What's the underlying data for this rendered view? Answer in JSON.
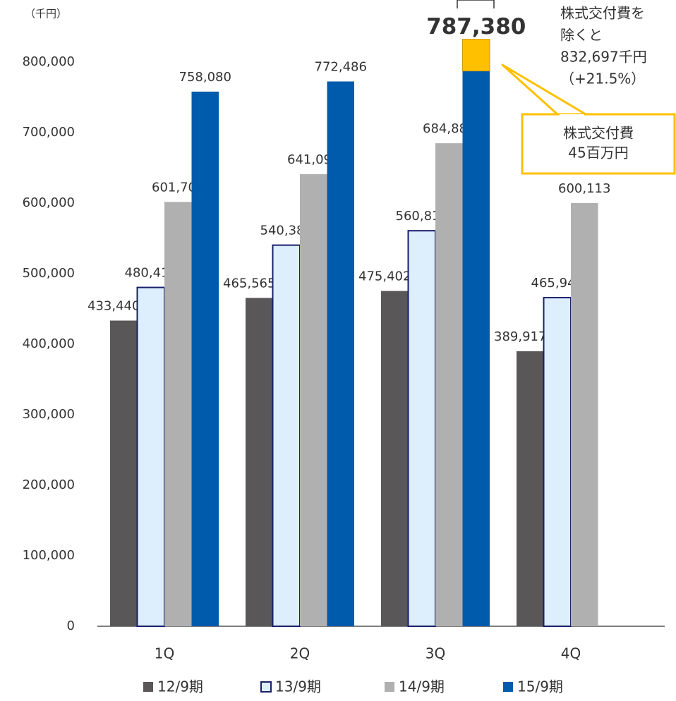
{
  "chart_data": {
    "type": "bar",
    "y_label": "（千円）",
    "categories": [
      "1Q",
      "2Q",
      "3Q",
      "4Q"
    ],
    "series": [
      {
        "name": "12/9期",
        "color": "#595757",
        "values": [
          433440,
          465565,
          475402,
          389917
        ],
        "value_labels": [
          "433,440",
          "465,565",
          "475,402",
          "389,917"
        ]
      },
      {
        "name": "13/9期",
        "color": "#ddeefc",
        "values": [
          480414,
          540382,
          560812,
          465943
        ],
        "value_labels": [
          "480,414",
          "540,382",
          "560,812",
          "465,943"
        ]
      },
      {
        "name": "14/9期",
        "color": "#b0b0b0",
        "values": [
          601701,
          641092,
          684886,
          600113
        ],
        "value_labels": [
          "601,701",
          "641,092",
          "684,886",
          "600,113"
        ]
      },
      {
        "name": "15/9期",
        "color": "#005bac",
        "values": [
          758080,
          772486,
          787380,
          null
        ],
        "value_labels": [
          "758,080",
          "772,486",
          "787,380",
          null
        ]
      }
    ],
    "ylim": [
      0,
      800000
    ],
    "yticks": [
      {
        "value": 0,
        "label": "0"
      },
      {
        "value": 100000,
        "label": "100,000"
      },
      {
        "value": 200000,
        "label": "200,000"
      },
      {
        "value": 300000,
        "label": "300,000"
      },
      {
        "value": 400000,
        "label": "400,000"
      },
      {
        "value": 500000,
        "label": "500,000"
      },
      {
        "value": 600000,
        "label": "600,000"
      },
      {
        "value": 700000,
        "label": "700,000"
      },
      {
        "value": 800000,
        "label": "800,000"
      }
    ],
    "segment": {
      "series": 3,
      "category": 2,
      "value": 45000,
      "color": "#ffc000",
      "label": [
        "株式交付費",
        "45百万円"
      ]
    },
    "annotation": [
      "株式交付費を",
      "除くと",
      "832,697千円",
      "（+21.5%）"
    ]
  }
}
